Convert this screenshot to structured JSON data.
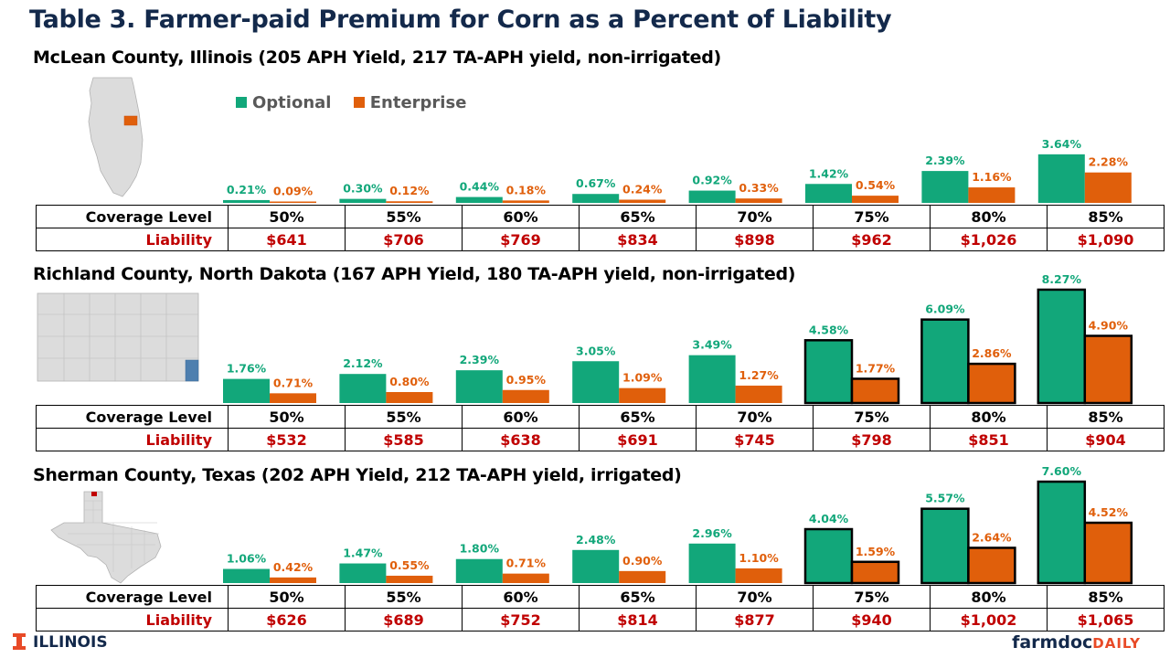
{
  "title": "Table 3.  Farmer-paid Premium for Corn as a Percent of Liability",
  "legend": [
    {
      "label": "Optional",
      "color": "#12A77A"
    },
    {
      "label": "Enterprise",
      "color": "#E05F0B"
    }
  ],
  "colors": {
    "optional": "#12A77A",
    "enterprise": "#E05F0B",
    "liability_text": "#C00000",
    "title": "#13294B"
  },
  "row_labels": {
    "coverage": "Coverage Level",
    "liability": "Liability"
  },
  "chart_data": [
    {
      "type": "bar",
      "title": "McLean County, Illinois (205 APH Yield, 217 TA-APH yield, non-irrigated)",
      "categories": [
        "50%",
        "55%",
        "60%",
        "65%",
        "70%",
        "75%",
        "80%",
        "85%"
      ],
      "series": [
        {
          "name": "Optional",
          "values": [
            0.21,
            0.3,
            0.44,
            0.67,
            0.92,
            1.42,
            2.39,
            3.64
          ],
          "labels": [
            "0.21%",
            "0.30%",
            "0.44%",
            "0.67%",
            "0.92%",
            "1.42%",
            "2.39%",
            "3.64%"
          ]
        },
        {
          "name": "Enterprise",
          "values": [
            0.09,
            0.12,
            0.18,
            0.24,
            0.33,
            0.54,
            1.16,
            2.28
          ],
          "labels": [
            "0.09%",
            "0.12%",
            "0.18%",
            "0.24%",
            "0.33%",
            "0.54%",
            "1.16%",
            "2.28%"
          ]
        }
      ],
      "liability": [
        "$641",
        "$706",
        "$769",
        "$834",
        "$898",
        "$962",
        "$1,026",
        "$1,090"
      ],
      "outlined_categories": [],
      "map_icon": "illinois-map-icon"
    },
    {
      "type": "bar",
      "title": "Richland County, North Dakota (167 APH Yield, 180 TA-APH yield, non-irrigated)",
      "categories": [
        "50%",
        "55%",
        "60%",
        "65%",
        "70%",
        "75%",
        "80%",
        "85%"
      ],
      "series": [
        {
          "name": "Optional",
          "values": [
            1.76,
            2.12,
            2.39,
            3.05,
            3.49,
            4.58,
            6.09,
            8.27
          ],
          "labels": [
            "1.76%",
            "2.12%",
            "2.39%",
            "3.05%",
            "3.49%",
            "4.58%",
            "6.09%",
            "8.27%"
          ]
        },
        {
          "name": "Enterprise",
          "values": [
            0.71,
            0.8,
            0.95,
            1.09,
            1.27,
            1.77,
            2.86,
            4.9
          ],
          "labels": [
            "0.71%",
            "0.80%",
            "0.95%",
            "1.09%",
            "1.27%",
            "1.77%",
            "2.86%",
            "4.90%"
          ]
        }
      ],
      "liability": [
        "$532",
        "$585",
        "$638",
        "$691",
        "$745",
        "$798",
        "$851",
        "$904"
      ],
      "outlined_categories": [
        "75%",
        "80%",
        "85%"
      ],
      "map_icon": "north-dakota-map-icon"
    },
    {
      "type": "bar",
      "title": "Sherman County, Texas (202 APH Yield, 212 TA-APH yield, irrigated)",
      "categories": [
        "50%",
        "55%",
        "60%",
        "65%",
        "70%",
        "75%",
        "80%",
        "85%"
      ],
      "series": [
        {
          "name": "Optional",
          "values": [
            1.06,
            1.47,
            1.8,
            2.48,
            2.96,
            4.04,
            5.57,
            7.6
          ],
          "labels": [
            "1.06%",
            "1.47%",
            "1.80%",
            "2.48%",
            "2.96%",
            "4.04%",
            "5.57%",
            "7.60%"
          ]
        },
        {
          "name": "Enterprise",
          "values": [
            0.42,
            0.55,
            0.71,
            0.9,
            1.1,
            1.59,
            2.64,
            4.52
          ],
          "labels": [
            "0.42%",
            "0.55%",
            "0.71%",
            "0.90%",
            "1.10%",
            "1.59%",
            "2.64%",
            "4.52%"
          ]
        }
      ],
      "liability": [
        "$626",
        "$689",
        "$752",
        "$814",
        "$877",
        "$940",
        "$1,002",
        "$1,065"
      ],
      "outlined_categories": [
        "75%",
        "80%",
        "85%"
      ],
      "map_icon": "texas-map-icon"
    }
  ],
  "footer": {
    "left_logo": "ILLINOIS",
    "brand_main": "farmdoc",
    "brand_sub": "DAILY"
  }
}
